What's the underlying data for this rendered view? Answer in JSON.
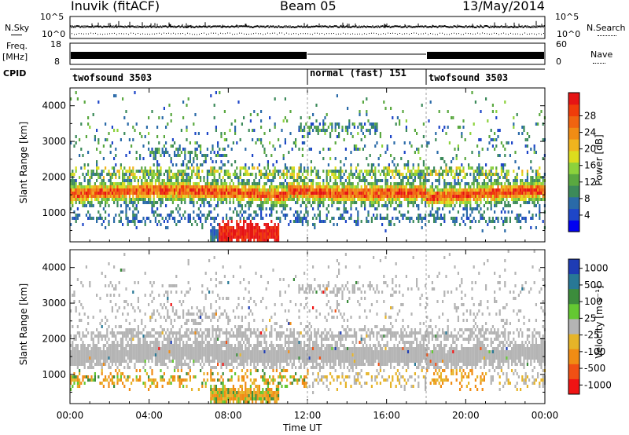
{
  "header": {
    "station": "Inuvik (fitACF)",
    "beam": "Beam 05",
    "date": "13/May/2014"
  },
  "summary_panels": {
    "nsky_label": "N.Sky",
    "nsearch_label": "N.Search",
    "noise_ticks": [
      "10^5",
      "10^0"
    ],
    "freq_label_1": "Freq.",
    "freq_label_2": "[MHz]",
    "freq_ticks": [
      "18",
      "8"
    ],
    "nave_label": "Nave",
    "nave_ticks": [
      "60",
      "0"
    ],
    "cpid_label": "CPID",
    "cpid_segments": [
      {
        "label": "twofsound 3503",
        "start_h": 0,
        "end_h": 12
      },
      {
        "label": "normal (fast) 151",
        "start_h": 12,
        "end_h": 18
      },
      {
        "label": "twofsound 3503",
        "start_h": 18,
        "end_h": 24
      }
    ]
  },
  "x_axis": {
    "label": "Time UT",
    "ticks": [
      "00:00",
      "04:00",
      "08:00",
      "12:00",
      "16:00",
      "20:00",
      "00:00"
    ]
  },
  "chart_data": [
    {
      "type": "heatmap",
      "parameter": "Power",
      "ylabel": "Slant Range [km]",
      "xlim_hours": [
        0,
        24
      ],
      "ylim_km": [
        180,
        4500
      ],
      "y_ticks": [
        1000,
        2000,
        3000,
        4000
      ],
      "colorbar": {
        "label": "Power [dB]",
        "range": [
          0,
          32
        ],
        "ticks": [
          "4",
          "8",
          "12",
          "16",
          "20",
          "24",
          "28"
        ],
        "colors": [
          "#0000f0",
          "#1e46c8",
          "#2a6aa8",
          "#3c8a5a",
          "#5aa840",
          "#8cd23c",
          "#dcdc1e",
          "#f0b41e",
          "#f08c14",
          "#f06410",
          "#f03c0a",
          "#e61414"
        ]
      }
    },
    {
      "type": "heatmap",
      "parameter": "Velocity",
      "ylabel": "Slant Range [km]",
      "xlim_hours": [
        0,
        24
      ],
      "ylim_km": [
        180,
        4500
      ],
      "y_ticks": [
        1000,
        2000,
        3000,
        4000
      ],
      "colorbar": {
        "label": "Velocity [m s⁻¹]",
        "ticks": [
          "1000",
          "500",
          "100",
          "25",
          "-25",
          "-100",
          "-500",
          "-1000"
        ],
        "colors": [
          "#1e3cb4",
          "#287896",
          "#3c8c3c",
          "#64c832",
          "#b4b4b4",
          "#e6b428",
          "#f08c14",
          "#f05014",
          "#f01414"
        ]
      }
    }
  ]
}
